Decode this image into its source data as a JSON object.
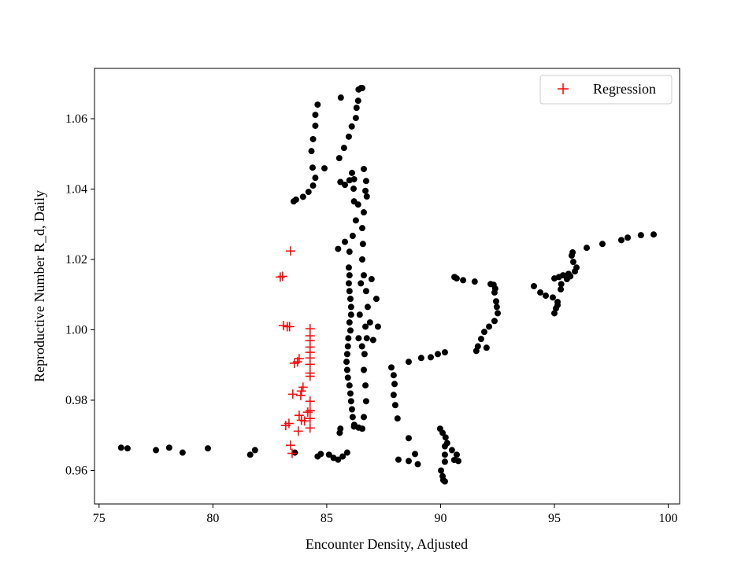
{
  "chart_data": {
    "type": "scatter",
    "title": "",
    "xlabel": "Encounter Density, Adjusted",
    "ylabel": "Reproductive Number R_d, Daily",
    "xlim": [
      74.8,
      100.5
    ],
    "ylim": [
      0.9505,
      1.0743
    ],
    "xticks": [
      75,
      80,
      85,
      90,
      95,
      100
    ],
    "xtick_labels": [
      "75",
      "80",
      "85",
      "90",
      "95",
      "100"
    ],
    "yticks": [
      0.96,
      0.98,
      1.0,
      1.02,
      1.04,
      1.06
    ],
    "ytick_labels": [
      "0.96",
      "0.98",
      "1.00",
      "1.02",
      "1.04",
      "1.06"
    ],
    "grid": false,
    "legend": {
      "position": "top-right",
      "entries": [
        "Regression"
      ]
    },
    "colors": {
      "observed": "#000000",
      "regression": "#ff0000"
    },
    "series": [
      {
        "name": "Observed",
        "marker": "circle",
        "points": [
          [
            75.97,
            0.9665
          ],
          [
            76.25,
            0.9663
          ],
          [
            77.5,
            0.9658
          ],
          [
            78.08,
            0.9665
          ],
          [
            78.67,
            0.9651
          ],
          [
            79.78,
            0.9663
          ],
          [
            81.64,
            0.9645
          ],
          [
            81.85,
            0.9658
          ],
          [
            83.6,
            0.9651
          ],
          [
            84.6,
            0.964
          ],
          [
            84.74,
            0.9647
          ],
          [
            85.1,
            0.9645
          ],
          [
            85.3,
            0.9636
          ],
          [
            85.5,
            0.9631
          ],
          [
            85.7,
            0.964
          ],
          [
            85.9,
            0.9651
          ],
          [
            83.55,
            1.0365
          ],
          [
            83.65,
            1.037
          ],
          [
            83.96,
            1.0378
          ],
          [
            84.2,
            1.0392
          ],
          [
            84.4,
            1.041
          ],
          [
            84.5,
            1.0432
          ],
          [
            84.9,
            1.0459
          ],
          [
            84.38,
            1.0461
          ],
          [
            84.33,
            1.0508
          ],
          [
            84.4,
            1.0542
          ],
          [
            84.5,
            1.058
          ],
          [
            84.5,
            1.0611
          ],
          [
            84.6,
            1.064
          ],
          [
            85.55,
            1.0488
          ],
          [
            85.76,
            1.0517
          ],
          [
            85.97,
            1.0549
          ],
          [
            86.1,
            1.0578
          ],
          [
            86.28,
            1.0602
          ],
          [
            86.31,
            1.0631
          ],
          [
            86.38,
            1.0651
          ],
          [
            85.62,
            1.066
          ],
          [
            86.4,
            1.0683
          ],
          [
            86.5,
            1.0687
          ],
          [
            86.56,
            1.0687
          ],
          [
            85.6,
            1.042
          ],
          [
            85.8,
            1.0412
          ],
          [
            86.0,
            1.0425
          ],
          [
            86.2,
            1.0428
          ],
          [
            86.11,
            1.0446
          ],
          [
            86.18,
            1.0401
          ],
          [
            86.38,
            1.0356
          ],
          [
            86.28,
            1.0311
          ],
          [
            86.14,
            1.0267
          ],
          [
            86.0,
            1.0222
          ],
          [
            85.97,
            1.0177
          ],
          [
            85.97,
            1.0132
          ],
          [
            86.04,
            1.0088
          ],
          [
            86.07,
            1.0043
          ],
          [
            86.04,
            0.9998
          ],
          [
            85.93,
            0.9953
          ],
          [
            85.87,
            0.9909
          ],
          [
            85.93,
            0.9864
          ],
          [
            86.04,
            0.9819
          ],
          [
            86.11,
            0.9774
          ],
          [
            86.21,
            0.973
          ],
          [
            86.0,
            1.0155
          ],
          [
            86.0,
            1.011
          ],
          [
            86.07,
            1.0065
          ],
          [
            86.0,
            1.0021
          ],
          [
            85.95,
            0.9976
          ],
          [
            85.9,
            0.9931
          ],
          [
            85.9,
            0.9886
          ],
          [
            86.0,
            0.9842
          ],
          [
            86.07,
            0.9797
          ],
          [
            86.14,
            0.9752
          ],
          [
            86.63,
            1.0457
          ],
          [
            86.73,
            1.0423
          ],
          [
            86.76,
            1.0379
          ],
          [
            86.63,
            1.0334
          ],
          [
            86.56,
            1.0289
          ],
          [
            86.59,
            1.0244
          ],
          [
            86.56,
            1.02
          ],
          [
            86.63,
            1.0155
          ],
          [
            86.73,
            1.011
          ],
          [
            86.8,
            1.0065
          ],
          [
            86.9,
            1.0021
          ],
          [
            86.76,
            0.9976
          ],
          [
            86.66,
            0.9931
          ],
          [
            86.63,
            0.9886
          ],
          [
            86.7,
            0.9842
          ],
          [
            86.73,
            0.9797
          ],
          [
            86.63,
            0.9752
          ],
          [
            86.56,
            0.9719
          ],
          [
            86.97,
            1.0144
          ],
          [
            87.18,
            1.0088
          ],
          [
            87.25,
            1.0009
          ],
          [
            87.04,
            0.9971
          ],
          [
            86.5,
            1.0132
          ],
          [
            86.45,
            1.0043
          ],
          [
            86.7,
            1.0009
          ],
          [
            86.4,
            0.9976
          ],
          [
            86.55,
            0.9953
          ],
          [
            85.57,
            0.9707
          ],
          [
            85.6,
            0.9719
          ],
          [
            86.2,
            0.9725
          ],
          [
            86.4,
            0.9722
          ],
          [
            85.5,
            1.023
          ],
          [
            85.8,
            1.025
          ],
          [
            86.2,
            1.0365
          ],
          [
            86.7,
            1.0395
          ],
          [
            87.84,
            0.9893
          ],
          [
            87.94,
            0.9871
          ],
          [
            87.98,
            0.9846
          ],
          [
            87.94,
            0.9815
          ],
          [
            88.01,
            0.9786
          ],
          [
            88.11,
            0.9748
          ],
          [
            88.15,
            0.9631
          ],
          [
            88.6,
            0.9627
          ],
          [
            88.88,
            0.9647
          ],
          [
            89.0,
            0.9618
          ],
          [
            88.6,
            0.9692
          ],
          [
            88.6,
            0.9909
          ],
          [
            89.15,
            0.992
          ],
          [
            89.57,
            0.9922
          ],
          [
            89.88,
            0.9931
          ],
          [
            90.19,
            0.9936
          ],
          [
            89.98,
            0.9719
          ],
          [
            90.09,
            0.9707
          ],
          [
            90.22,
            0.9694
          ],
          [
            90.29,
            0.9678
          ],
          [
            90.5,
            0.9658
          ],
          [
            90.71,
            0.9645
          ],
          [
            90.78,
            0.9627
          ],
          [
            90.19,
            0.9669
          ],
          [
            90.19,
            0.9645
          ],
          [
            90.19,
            0.9625
          ],
          [
            90.02,
            0.96
          ],
          [
            90.09,
            0.9584
          ],
          [
            90.19,
            0.9569
          ],
          [
            90.12,
            0.9573
          ],
          [
            90.6,
            0.963
          ],
          [
            90.61,
            1.015
          ],
          [
            90.71,
            1.0146
          ],
          [
            90.99,
            1.0141
          ],
          [
            91.5,
            1.0137
          ],
          [
            92.2,
            1.013
          ],
          [
            92.33,
            1.0128
          ],
          [
            92.37,
            1.0106
          ],
          [
            92.44,
            1.0081
          ],
          [
            92.51,
            1.0047
          ],
          [
            92.37,
            1.0025
          ],
          [
            92.13,
            1.0009
          ],
          [
            91.92,
            0.9994
          ],
          [
            91.78,
            0.9974
          ],
          [
            91.64,
            0.9953
          ],
          [
            92.02,
            0.9949
          ],
          [
            91.57,
            0.994
          ],
          [
            92.4,
            1.0117
          ],
          [
            92.47,
            1.0065
          ],
          [
            94.1,
            1.0124
          ],
          [
            94.38,
            1.0106
          ],
          [
            94.62,
            1.0097
          ],
          [
            94.93,
            1.0092
          ],
          [
            95.14,
            1.0079
          ],
          [
            95.07,
            1.0061
          ],
          [
            95.0,
            1.0047
          ],
          [
            95.14,
            1.007
          ],
          [
            95.28,
            1.0115
          ],
          [
            95.0,
            1.0146
          ],
          [
            95.38,
            1.0155
          ],
          [
            95.62,
            1.0159
          ],
          [
            95.9,
            1.0166
          ],
          [
            95.97,
            1.0177
          ],
          [
            95.83,
            1.0193
          ],
          [
            95.76,
            1.0211
          ],
          [
            95.8,
            1.022
          ],
          [
            95.2,
            1.015
          ],
          [
            95.55,
            1.0144
          ],
          [
            95.7,
            1.0152
          ],
          [
            95.3,
            1.013
          ],
          [
            96.42,
            1.0233
          ],
          [
            97.11,
            1.0244
          ],
          [
            97.94,
            1.0255
          ],
          [
            98.22,
            1.0262
          ],
          [
            98.8,
            1.0269
          ],
          [
            99.36,
            1.0271
          ]
        ]
      },
      {
        "name": "Regression",
        "marker": "plus",
        "points": [
          [
            83.41,
            1.0224
          ],
          [
            82.96,
            1.015
          ],
          [
            83.06,
            1.0152
          ],
          [
            83.1,
            1.0012
          ],
          [
            83.27,
            1.0009
          ],
          [
            83.37,
            1.0009
          ],
          [
            84.27,
            1.0003
          ],
          [
            84.27,
            0.9983
          ],
          [
            84.27,
            0.9969
          ],
          [
            84.27,
            0.9951
          ],
          [
            84.27,
            0.9936
          ],
          [
            84.27,
            0.992
          ],
          [
            84.27,
            0.9902
          ],
          [
            84.27,
            0.9877
          ],
          [
            84.27,
            0.9868
          ],
          [
            83.72,
            0.9909
          ],
          [
            83.79,
            0.9918
          ],
          [
            83.58,
            0.9905
          ],
          [
            83.96,
            0.9837
          ],
          [
            83.89,
            0.9826
          ],
          [
            83.51,
            0.9817
          ],
          [
            83.86,
            0.9813
          ],
          [
            84.27,
            0.9797
          ],
          [
            84.27,
            0.977
          ],
          [
            84.17,
            0.9766
          ],
          [
            84.27,
            0.9748
          ],
          [
            84.27,
            0.9721
          ],
          [
            83.79,
            0.9757
          ],
          [
            83.89,
            0.9743
          ],
          [
            84.03,
            0.9741
          ],
          [
            83.2,
            0.9728
          ],
          [
            83.34,
            0.9734
          ],
          [
            83.75,
            0.9712
          ],
          [
            83.41,
            0.9672
          ],
          [
            83.48,
            0.9649
          ]
        ]
      }
    ]
  }
}
